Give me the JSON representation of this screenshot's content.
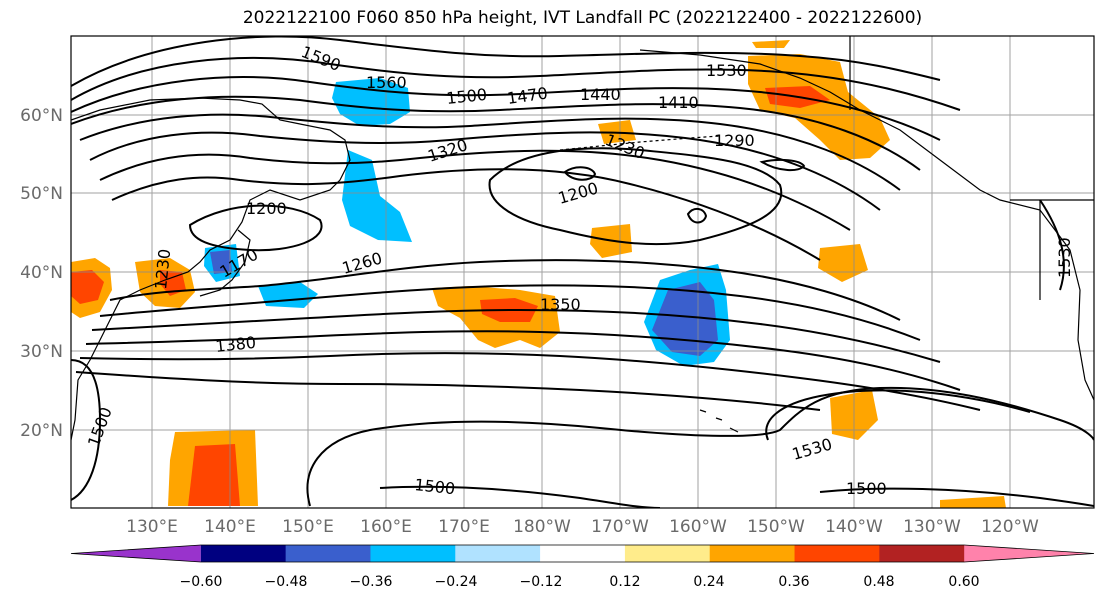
{
  "title": "2022122100 F060 850 hPa height, IVT Landfall PC (2022122400 - 2022122600)",
  "lat_labels": [
    "60°N",
    "50°N",
    "40°N",
    "30°N",
    "20°N"
  ],
  "lon_labels": [
    "130°E",
    "140°E",
    "150°E",
    "160°E",
    "170°E",
    "180°W",
    "170°W",
    "160°W",
    "150°W",
    "140°W",
    "130°W",
    "120°W"
  ],
  "contour_labels": [
    "1590",
    "1560",
    "1530",
    "1500",
    "1470",
    "1440",
    "1410",
    "1320",
    "1290",
    "1230",
    "1200",
    "1200",
    "1170",
    "1260",
    "1350",
    "1380",
    "1500",
    "1530",
    "1500",
    "1500",
    "1530",
    "1230"
  ],
  "colorbar": {
    "ticks": [
      "−0.60",
      "−0.48",
      "−0.36",
      "−0.24",
      "−0.12",
      "0.12",
      "0.24",
      "0.36",
      "0.48",
      "0.60"
    ],
    "colors": [
      "#9933cc",
      "#000080",
      "#3a5fcd",
      "#00bfff",
      "#b0e2ff",
      "#ffffff",
      "#ffec8b",
      "#ffa500",
      "#ff4500",
      "#b22222",
      "#ff82ab"
    ]
  },
  "colors": {
    "contour": "#000000",
    "coast": "#000000",
    "grid": "#8c8c8c",
    "frame": "#000000"
  }
}
